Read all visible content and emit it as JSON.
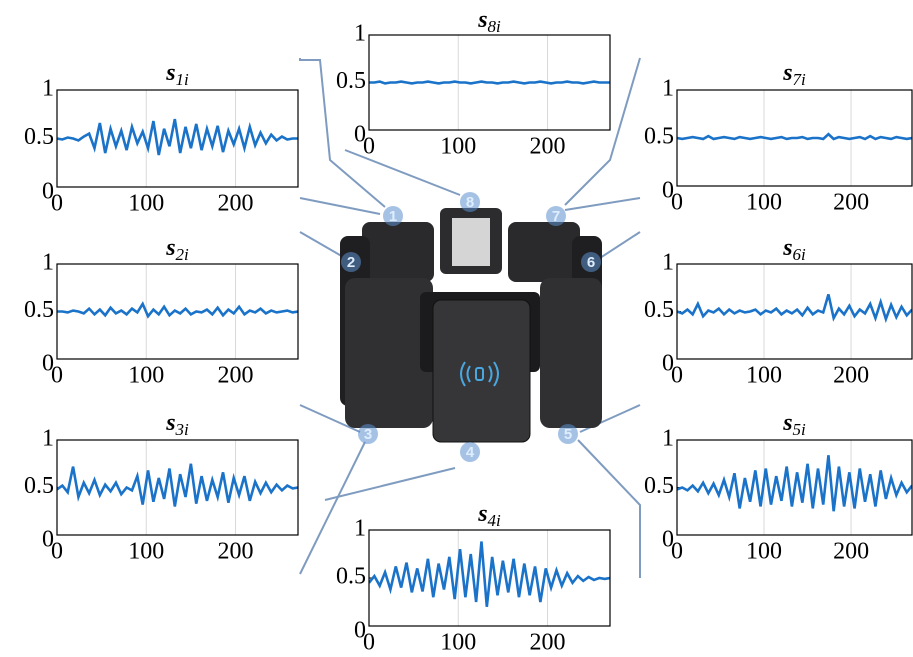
{
  "chart_data": [
    {
      "type": "line",
      "title": "s",
      "title_subscript": "1i",
      "x": [
        0,
        6,
        12,
        18,
        24,
        30,
        36,
        42,
        48,
        54,
        60,
        66,
        72,
        78,
        84,
        90,
        96,
        102,
        108,
        114,
        120,
        126,
        132,
        138,
        144,
        150,
        156,
        162,
        168,
        174,
        180,
        186,
        192,
        198,
        204,
        210,
        216,
        222,
        228,
        234,
        240,
        246,
        252,
        258,
        264,
        270
      ],
      "series": [
        {
          "color": "#1a73c9",
          "values": [
            0.5,
            0.49,
            0.51,
            0.5,
            0.48,
            0.52,
            0.55,
            0.4,
            0.66,
            0.35,
            0.6,
            0.42,
            0.58,
            0.38,
            0.62,
            0.45,
            0.57,
            0.4,
            0.68,
            0.33,
            0.6,
            0.42,
            0.7,
            0.35,
            0.62,
            0.4,
            0.65,
            0.38,
            0.6,
            0.42,
            0.63,
            0.36,
            0.58,
            0.44,
            0.6,
            0.4,
            0.62,
            0.43,
            0.56,
            0.45,
            0.54,
            0.48,
            0.52,
            0.49,
            0.5,
            0.5
          ]
        }
      ],
      "xlim": [
        0,
        270
      ],
      "ylim": [
        0,
        1
      ],
      "xticks": [
        0,
        100,
        200
      ],
      "yticks": [
        0,
        0.5,
        1
      ],
      "grid": true
    },
    {
      "type": "line",
      "title": "s",
      "title_subscript": "2i",
      "x": [
        0,
        6,
        12,
        18,
        24,
        30,
        36,
        42,
        48,
        54,
        60,
        66,
        72,
        78,
        84,
        90,
        96,
        102,
        108,
        114,
        120,
        126,
        132,
        138,
        144,
        150,
        156,
        162,
        168,
        174,
        180,
        186,
        192,
        198,
        204,
        210,
        216,
        222,
        228,
        234,
        240,
        246,
        252,
        258,
        264,
        270
      ],
      "series": [
        {
          "color": "#1a73c9",
          "values": [
            0.5,
            0.5,
            0.49,
            0.51,
            0.5,
            0.48,
            0.53,
            0.47,
            0.52,
            0.46,
            0.54,
            0.48,
            0.51,
            0.47,
            0.53,
            0.49,
            0.58,
            0.45,
            0.52,
            0.47,
            0.55,
            0.46,
            0.51,
            0.48,
            0.53,
            0.47,
            0.5,
            0.49,
            0.52,
            0.47,
            0.54,
            0.46,
            0.52,
            0.48,
            0.55,
            0.47,
            0.51,
            0.49,
            0.53,
            0.48,
            0.51,
            0.49,
            0.5,
            0.51,
            0.49,
            0.5
          ]
        }
      ],
      "xlim": [
        0,
        270
      ],
      "ylim": [
        0,
        1
      ],
      "xticks": [
        0,
        100,
        200
      ],
      "yticks": [
        0,
        0.5,
        1
      ],
      "grid": true
    },
    {
      "type": "line",
      "title": "s",
      "title_subscript": "3i",
      "x": [
        0,
        6,
        12,
        18,
        24,
        30,
        36,
        42,
        48,
        54,
        60,
        66,
        72,
        78,
        84,
        90,
        96,
        102,
        108,
        114,
        120,
        126,
        132,
        138,
        144,
        150,
        156,
        162,
        168,
        174,
        180,
        186,
        192,
        198,
        204,
        210,
        216,
        222,
        228,
        234,
        240,
        246,
        252,
        258,
        264,
        270
      ],
      "series": [
        {
          "color": "#1a73c9",
          "values": [
            0.48,
            0.52,
            0.45,
            0.72,
            0.4,
            0.55,
            0.44,
            0.58,
            0.42,
            0.53,
            0.46,
            0.55,
            0.43,
            0.5,
            0.47,
            0.62,
            0.32,
            0.68,
            0.35,
            0.6,
            0.38,
            0.7,
            0.3,
            0.64,
            0.4,
            0.75,
            0.33,
            0.62,
            0.36,
            0.58,
            0.4,
            0.66,
            0.34,
            0.6,
            0.42,
            0.62,
            0.36,
            0.56,
            0.44,
            0.55,
            0.45,
            0.53,
            0.47,
            0.52,
            0.49,
            0.5
          ]
        }
      ],
      "xlim": [
        0,
        270
      ],
      "ylim": [
        0,
        1
      ],
      "xticks": [
        0,
        100,
        200
      ],
      "yticks": [
        0,
        0.5,
        1
      ],
      "grid": true
    },
    {
      "type": "line",
      "title": "s",
      "title_subscript": "4i",
      "x": [
        0,
        6,
        12,
        18,
        24,
        30,
        36,
        42,
        48,
        54,
        60,
        66,
        72,
        78,
        84,
        90,
        96,
        102,
        108,
        114,
        120,
        126,
        132,
        138,
        144,
        150,
        156,
        162,
        168,
        174,
        180,
        186,
        192,
        198,
        204,
        210,
        216,
        222,
        228,
        234,
        240,
        246,
        252,
        258,
        264,
        270
      ],
      "series": [
        {
          "color": "#1a73c9",
          "values": [
            0.45,
            0.52,
            0.42,
            0.56,
            0.38,
            0.62,
            0.4,
            0.66,
            0.35,
            0.6,
            0.36,
            0.7,
            0.3,
            0.65,
            0.38,
            0.72,
            0.28,
            0.8,
            0.3,
            0.75,
            0.25,
            0.88,
            0.2,
            0.72,
            0.32,
            0.68,
            0.35,
            0.7,
            0.3,
            0.65,
            0.32,
            0.62,
            0.25,
            0.6,
            0.4,
            0.58,
            0.42,
            0.55,
            0.45,
            0.52,
            0.47,
            0.51,
            0.48,
            0.5,
            0.49,
            0.5
          ]
        }
      ],
      "xlim": [
        0,
        270
      ],
      "ylim": [
        0,
        1
      ],
      "xticks": [
        0,
        100,
        200
      ],
      "yticks": [
        0,
        0.5,
        1
      ],
      "grid": true
    },
    {
      "type": "line",
      "title": "s",
      "title_subscript": "5i",
      "x": [
        0,
        6,
        12,
        18,
        24,
        30,
        36,
        42,
        48,
        54,
        60,
        66,
        72,
        78,
        84,
        90,
        96,
        102,
        108,
        114,
        120,
        126,
        132,
        138,
        144,
        150,
        156,
        162,
        168,
        174,
        180,
        186,
        192,
        198,
        204,
        210,
        216,
        222,
        228,
        234,
        240,
        246,
        252,
        258,
        264,
        270
      ],
      "series": [
        {
          "color": "#1a73c9",
          "values": [
            0.48,
            0.5,
            0.47,
            0.52,
            0.46,
            0.55,
            0.44,
            0.54,
            0.42,
            0.58,
            0.4,
            0.65,
            0.28,
            0.6,
            0.35,
            0.68,
            0.3,
            0.7,
            0.32,
            0.62,
            0.36,
            0.72,
            0.3,
            0.66,
            0.34,
            0.75,
            0.28,
            0.7,
            0.32,
            0.84,
            0.25,
            0.72,
            0.3,
            0.66,
            0.28,
            0.7,
            0.35,
            0.64,
            0.3,
            0.68,
            0.38,
            0.6,
            0.42,
            0.55,
            0.45,
            0.52
          ]
        }
      ],
      "xlim": [
        0,
        270
      ],
      "ylim": [
        0,
        1
      ],
      "xticks": [
        0,
        100,
        200
      ],
      "yticks": [
        0,
        0.5,
        1
      ],
      "grid": true
    },
    {
      "type": "line",
      "title": "s",
      "title_subscript": "6i",
      "x": [
        0,
        6,
        12,
        18,
        24,
        30,
        36,
        42,
        48,
        54,
        60,
        66,
        72,
        78,
        84,
        90,
        96,
        102,
        108,
        114,
        120,
        126,
        132,
        138,
        144,
        150,
        156,
        162,
        168,
        174,
        180,
        186,
        192,
        198,
        204,
        210,
        216,
        222,
        228,
        234,
        240,
        246,
        252,
        258,
        264,
        270
      ],
      "series": [
        {
          "color": "#1a73c9",
          "values": [
            0.5,
            0.48,
            0.52,
            0.47,
            0.58,
            0.45,
            0.51,
            0.49,
            0.53,
            0.47,
            0.52,
            0.48,
            0.51,
            0.49,
            0.5,
            0.52,
            0.47,
            0.51,
            0.49,
            0.53,
            0.47,
            0.51,
            0.48,
            0.52,
            0.46,
            0.54,
            0.47,
            0.51,
            0.49,
            0.68,
            0.43,
            0.53,
            0.47,
            0.56,
            0.45,
            0.52,
            0.48,
            0.58,
            0.43,
            0.6,
            0.42,
            0.57,
            0.44,
            0.55,
            0.46,
            0.52
          ]
        }
      ],
      "xlim": [
        0,
        270
      ],
      "ylim": [
        0,
        1
      ],
      "xticks": [
        0,
        100,
        200
      ],
      "yticks": [
        0,
        0.5,
        1
      ],
      "grid": true
    },
    {
      "type": "line",
      "title": "s",
      "title_subscript": "7i",
      "x": [
        0,
        6,
        12,
        18,
        24,
        30,
        36,
        42,
        48,
        54,
        60,
        66,
        72,
        78,
        84,
        90,
        96,
        102,
        108,
        114,
        120,
        126,
        132,
        138,
        144,
        150,
        156,
        162,
        168,
        174,
        180,
        186,
        192,
        198,
        204,
        210,
        216,
        222,
        228,
        234,
        240,
        246,
        252,
        258,
        264,
        270
      ],
      "series": [
        {
          "color": "#1a73c9",
          "values": [
            0.5,
            0.49,
            0.5,
            0.51,
            0.5,
            0.49,
            0.52,
            0.49,
            0.5,
            0.51,
            0.5,
            0.49,
            0.51,
            0.5,
            0.49,
            0.5,
            0.51,
            0.5,
            0.49,
            0.5,
            0.51,
            0.49,
            0.5,
            0.5,
            0.51,
            0.49,
            0.5,
            0.5,
            0.49,
            0.54,
            0.49,
            0.51,
            0.5,
            0.49,
            0.5,
            0.51,
            0.49,
            0.52,
            0.49,
            0.51,
            0.5,
            0.49,
            0.51,
            0.5,
            0.49,
            0.5
          ]
        }
      ],
      "xlim": [
        0,
        270
      ],
      "ylim": [
        0,
        1
      ],
      "xticks": [
        0,
        100,
        200
      ],
      "yticks": [
        0,
        0.5,
        1
      ],
      "grid": true
    },
    {
      "type": "line",
      "title": "s",
      "title_subscript": "8i",
      "x": [
        0,
        6,
        12,
        18,
        24,
        30,
        36,
        42,
        48,
        54,
        60,
        66,
        72,
        78,
        84,
        90,
        96,
        102,
        108,
        114,
        120,
        126,
        132,
        138,
        144,
        150,
        156,
        162,
        168,
        174,
        180,
        186,
        192,
        198,
        204,
        210,
        216,
        222,
        228,
        234,
        240,
        246,
        252,
        258,
        264,
        270
      ],
      "series": [
        {
          "color": "#1a73c9",
          "values": [
            0.5,
            0.5,
            0.51,
            0.49,
            0.5,
            0.5,
            0.51,
            0.5,
            0.49,
            0.5,
            0.5,
            0.51,
            0.5,
            0.49,
            0.5,
            0.5,
            0.51,
            0.5,
            0.5,
            0.49,
            0.5,
            0.51,
            0.5,
            0.5,
            0.49,
            0.5,
            0.5,
            0.51,
            0.5,
            0.49,
            0.5,
            0.5,
            0.51,
            0.5,
            0.49,
            0.5,
            0.5,
            0.51,
            0.5,
            0.5,
            0.49,
            0.5,
            0.51,
            0.5,
            0.5,
            0.5
          ]
        }
      ],
      "xlim": [
        0,
        270
      ],
      "ylim": [
        0,
        1
      ],
      "xticks": [
        0,
        100,
        200
      ],
      "yticks": [
        0,
        0.5,
        1
      ],
      "grid": true
    }
  ],
  "pod_labels": [
    "1",
    "2",
    "3",
    "4",
    "5",
    "6",
    "7",
    "8"
  ]
}
